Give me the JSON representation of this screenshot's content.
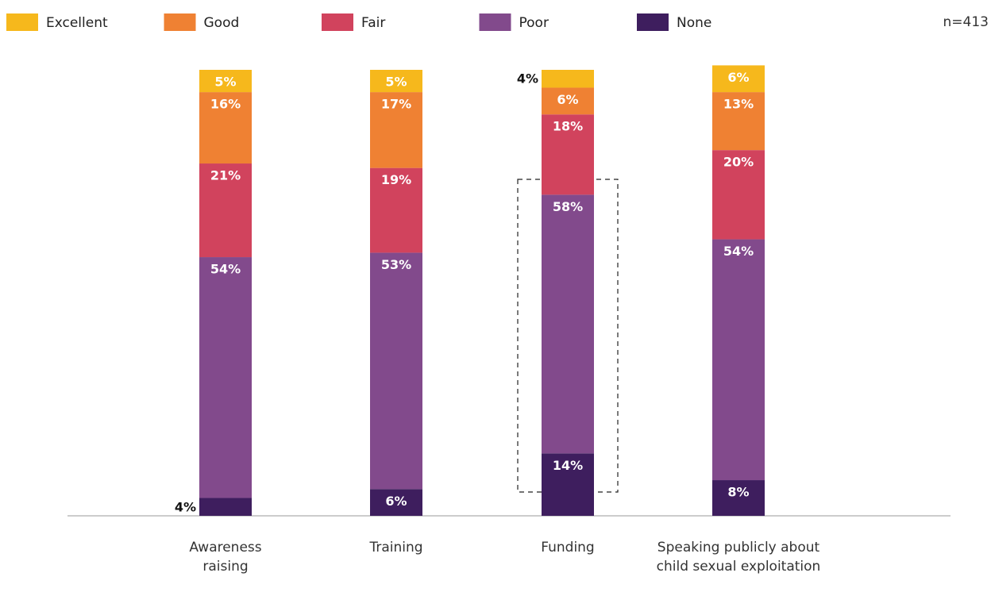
{
  "chart_data": {
    "type": "stacked_bar",
    "note": "n=413",
    "categories": [
      "Awareness raising",
      "Training",
      "Funding",
      "Speaking publicly about child sexual exploitation"
    ],
    "ylim": [
      0,
      100
    ],
    "series": [
      {
        "name": "Excellent",
        "color": "#f6b81c",
        "values": [
          5,
          5,
          4,
          6
        ],
        "value_labels": [
          "5%",
          "5%",
          "4%",
          "6%"
        ]
      },
      {
        "name": "Good",
        "color": "#ef8133",
        "values": [
          16,
          17,
          6,
          13
        ],
        "value_labels": [
          "16%",
          "17%",
          "6%",
          "13%"
        ]
      },
      {
        "name": "Fair",
        "color": "#d1435d",
        "values": [
          21,
          19,
          18,
          20
        ],
        "value_labels": [
          "21%",
          "19%",
          "18%",
          "20%"
        ]
      },
      {
        "name": "Poor",
        "color": "#824a8c",
        "values": [
          54,
          53,
          58,
          54
        ],
        "value_labels": [
          "54%",
          "53%",
          "58%",
          "54%"
        ]
      },
      {
        "name": "None",
        "color": "#3e1e5e",
        "values": [
          4,
          6,
          14,
          8
        ],
        "value_labels": [
          "4%",
          "6%",
          "14%",
          "8%"
        ]
      }
    ]
  }
}
